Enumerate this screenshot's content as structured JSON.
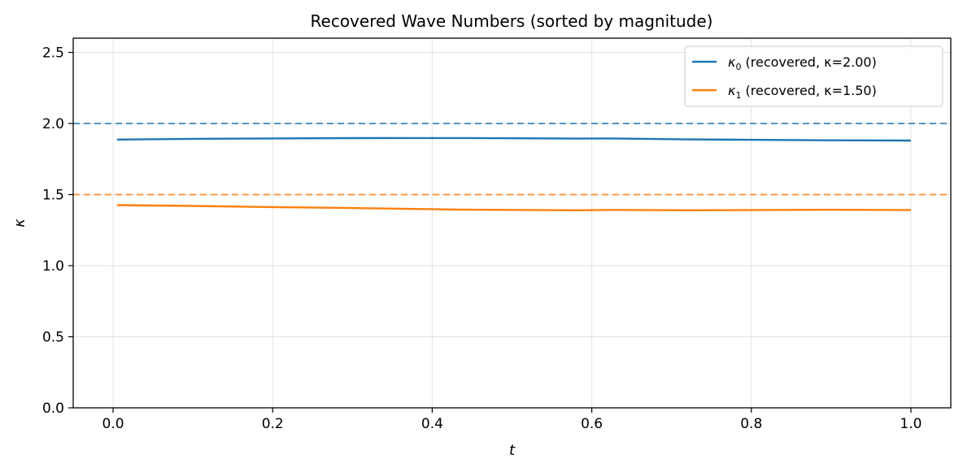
{
  "chart_data": {
    "type": "line",
    "title": "Recovered Wave Numbers (sorted by magnitude)",
    "xlabel": "t",
    "ylabel": "κ",
    "xlim": [
      -0.05,
      1.05
    ],
    "ylim": [
      0.0,
      2.6
    ],
    "xticks": [
      0.0,
      0.2,
      0.4,
      0.6,
      0.8,
      1.0
    ],
    "xtick_labels": [
      "0.0",
      "0.2",
      "0.4",
      "0.6",
      "0.8",
      "1.0"
    ],
    "yticks": [
      0.0,
      0.5,
      1.0,
      1.5,
      2.0,
      2.5
    ],
    "ytick_labels": [
      "0.0",
      "0.5",
      "1.0",
      "1.5",
      "2.0",
      "2.5"
    ],
    "grid": true,
    "legend_position": "top-right",
    "series": [
      {
        "name": "κ0 (recovered, κ=2.00)",
        "legend_symbol": "κ",
        "legend_subscript": "0",
        "legend_rest": " (recovered, κ=2.00)",
        "color": "#1f77b4",
        "x": [
          0.005,
          0.1,
          0.2,
          0.3,
          0.44,
          0.58,
          0.62,
          0.72,
          0.8,
          0.9,
          1.0
        ],
        "y": [
          1.887,
          1.892,
          1.895,
          1.897,
          1.898,
          1.894,
          1.895,
          1.888,
          1.885,
          1.882,
          1.88
        ]
      },
      {
        "name": "κ1 (recovered, κ=1.50)",
        "legend_symbol": "κ",
        "legend_subscript": "1",
        "legend_rest": " (recovered, κ=1.50)",
        "color": "#ff7f0e",
        "x": [
          0.005,
          0.1,
          0.2,
          0.3,
          0.44,
          0.58,
          0.62,
          0.72,
          0.8,
          0.9,
          1.0
        ],
        "y": [
          1.426,
          1.42,
          1.412,
          1.405,
          1.394,
          1.39,
          1.392,
          1.39,
          1.391,
          1.393,
          1.391
        ]
      }
    ],
    "reference_lines": [
      {
        "y": 2.0,
        "color": "#1f77b4",
        "style": "dashed"
      },
      {
        "y": 1.5,
        "color": "#ff7f0e",
        "style": "dashed"
      }
    ]
  }
}
